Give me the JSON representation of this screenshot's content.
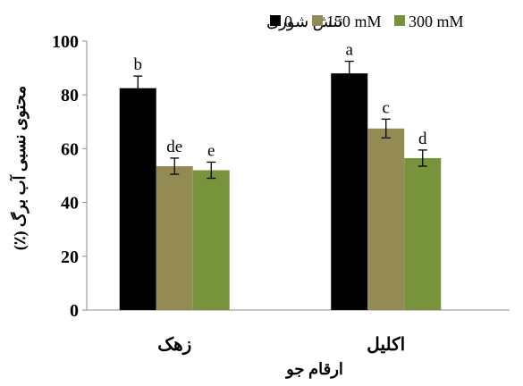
{
  "chart_data": {
    "type": "bar",
    "title": "",
    "xlabel": "ارقام جو",
    "ylabel": "محتوی نسبی آب برگ (٪)",
    "legend_title": "تنش شوری",
    "legend_position": "top",
    "categories": [
      "زهک",
      "اکلیل"
    ],
    "series": [
      {
        "name": "0",
        "color": "#000000",
        "values": [
          82.5,
          88
        ],
        "errors": [
          4.5,
          4.5
        ],
        "letters": [
          "b",
          "a"
        ]
      },
      {
        "name": "150 mM",
        "color": "#948a54",
        "values": [
          53.5,
          67.5
        ],
        "errors": [
          3,
          3.5
        ],
        "letters": [
          "de",
          "c"
        ]
      },
      {
        "name": "300 mM",
        "color": "#77933c",
        "values": [
          52,
          56.5
        ],
        "errors": [
          3,
          3
        ],
        "letters": [
          "e",
          "d"
        ]
      }
    ],
    "ylim": [
      0,
      100
    ],
    "yticks": [
      0,
      20,
      40,
      60,
      80,
      100
    ],
    "grid": false
  }
}
